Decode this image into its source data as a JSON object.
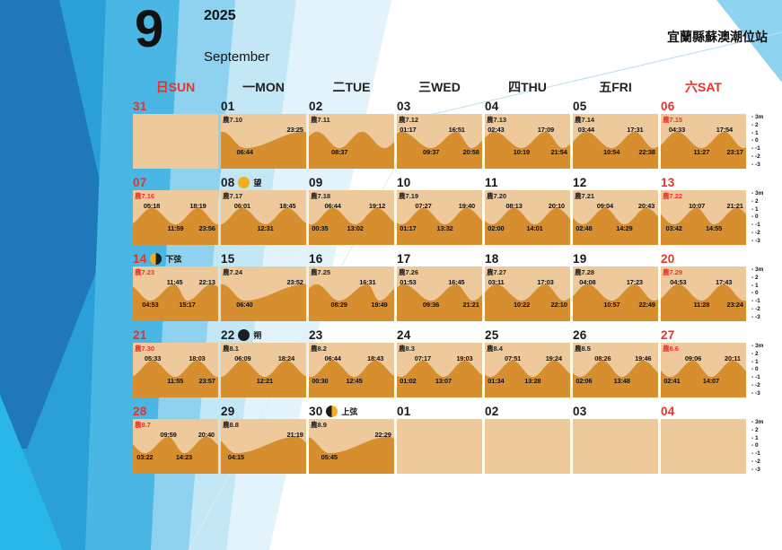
{
  "header": {
    "month_number": "9",
    "year": "2025",
    "month_name": "September",
    "station": "宜蘭縣蘇澳潮位站"
  },
  "weekdays": [
    {
      "key": "sun",
      "label": "日SUN",
      "red": true
    },
    {
      "key": "mon",
      "label": "一MON",
      "red": false
    },
    {
      "key": "tue",
      "label": "二TUE",
      "red": false
    },
    {
      "key": "wed",
      "label": "三WED",
      "red": false
    },
    {
      "key": "thu",
      "label": "四THU",
      "red": false
    },
    {
      "key": "fri",
      "label": "五FRI",
      "red": false
    },
    {
      "key": "sat",
      "label": "六SAT",
      "red": true
    }
  ],
  "axis": {
    "labels": [
      "3m",
      "2",
      "1",
      "0",
      "-1",
      "-2",
      "-3"
    ]
  },
  "colors": {
    "sand": "#edc99c",
    "tide": "#d78e2e",
    "red": "#e8332a",
    "moon_yellow": "#f2ae1c",
    "moon_dark": "#1d1d1d"
  },
  "weeks": [
    [
      {
        "day": "31",
        "red": true,
        "empty": true
      },
      {
        "day": "01",
        "lunar": "農7.10",
        "highs": [
          "23:25"
        ],
        "lows": [
          "06:44"
        ]
      },
      {
        "day": "02",
        "lunar": "農7.11",
        "highs": [],
        "lows": [
          "08:37"
        ]
      },
      {
        "day": "03",
        "lunar": "農7.12",
        "highs": [
          "01:17",
          "16:51"
        ],
        "lows": [
          "09:37",
          "20:58"
        ]
      },
      {
        "day": "04",
        "lunar": "農7.13",
        "highs": [
          "02:43",
          "17:09"
        ],
        "lows": [
          "10:19",
          "21:54"
        ]
      },
      {
        "day": "05",
        "lunar": "農7.14",
        "highs": [
          "03:44",
          "17:31"
        ],
        "lows": [
          "10:54",
          "22:38"
        ]
      },
      {
        "day": "06",
        "red": true,
        "lunar": "農7.15",
        "lunar_red": true,
        "highs": [
          "04:33",
          "17:54"
        ],
        "lows": [
          "11:27",
          "23:17"
        ]
      }
    ],
    [
      {
        "day": "07",
        "red": true,
        "lunar": "農7.16",
        "lunar_red": true,
        "highs": [
          "05:18",
          "18:19"
        ],
        "lows": [
          "11:59",
          "23:56"
        ]
      },
      {
        "day": "08",
        "moon": {
          "type": "full",
          "label": "望"
        },
        "lunar": "農7.17",
        "highs": [
          "06:01",
          "18:45"
        ],
        "lows": [
          "12:31"
        ]
      },
      {
        "day": "09",
        "lunar": "農7.18",
        "highs": [
          "06:44",
          "19:12"
        ],
        "lows": [
          "00:35",
          "13:02"
        ]
      },
      {
        "day": "10",
        "lunar": "農7.19",
        "highs": [
          "07:27",
          "19:40"
        ],
        "lows": [
          "01:17",
          "13:32"
        ]
      },
      {
        "day": "11",
        "lunar": "農7.20",
        "highs": [
          "08:13",
          "20:10"
        ],
        "lows": [
          "02:00",
          "14:01"
        ]
      },
      {
        "day": "12",
        "lunar": "農7.21",
        "highs": [
          "09:04",
          "20:43"
        ],
        "lows": [
          "02:48",
          "14:29"
        ]
      },
      {
        "day": "13",
        "red": true,
        "lunar": "農7.22",
        "lunar_red": true,
        "highs": [
          "10:07",
          "21:21"
        ],
        "lows": [
          "03:42",
          "14:55"
        ]
      }
    ],
    [
      {
        "day": "14",
        "red": true,
        "moon": {
          "type": "last-quarter",
          "label": "下弦"
        },
        "lunar": "農7.23",
        "lunar_red": true,
        "highs": [
          "11:45",
          "22:13"
        ],
        "lows": [
          "04:53",
          "15:17"
        ]
      },
      {
        "day": "15",
        "lunar": "農7.24",
        "highs": [
          "23:52"
        ],
        "lows": [
          "06:40"
        ]
      },
      {
        "day": "16",
        "lunar": "農7.25",
        "highs": [
          "16:31"
        ],
        "lows": [
          "08:29",
          "19:49"
        ]
      },
      {
        "day": "17",
        "lunar": "農7.26",
        "highs": [
          "01:53",
          "16:45"
        ],
        "lows": [
          "09:36",
          "21:21"
        ]
      },
      {
        "day": "18",
        "lunar": "農7.27",
        "highs": [
          "03:11",
          "17:03"
        ],
        "lows": [
          "10:22",
          "22:10"
        ]
      },
      {
        "day": "19",
        "lunar": "農7.28",
        "highs": [
          "04:08",
          "17:23"
        ],
        "lows": [
          "10:57",
          "22:49"
        ]
      },
      {
        "day": "20",
        "red": true,
        "lunar": "農7.29",
        "lunar_red": true,
        "highs": [
          "04:53",
          "17:43"
        ],
        "lows": [
          "11:28",
          "23:24"
        ]
      }
    ],
    [
      {
        "day": "21",
        "red": true,
        "lunar": "農7.30",
        "lunar_red": true,
        "highs": [
          "05:33",
          "18:03"
        ],
        "lows": [
          "11:55",
          "23:57"
        ]
      },
      {
        "day": "22",
        "moon": {
          "type": "new",
          "label": "朔"
        },
        "lunar": "農8.1",
        "highs": [
          "06:09",
          "18:24"
        ],
        "lows": [
          "12:21"
        ]
      },
      {
        "day": "23",
        "lunar": "農8.2",
        "highs": [
          "06:44",
          "18:43"
        ],
        "lows": [
          "00:30",
          "12:45"
        ]
      },
      {
        "day": "24",
        "lunar": "農8.3",
        "highs": [
          "07:17",
          "19:03"
        ],
        "lows": [
          "01:02",
          "13:07"
        ]
      },
      {
        "day": "25",
        "lunar": "農8.4",
        "highs": [
          "07:51",
          "19:24"
        ],
        "lows": [
          "01:34",
          "13:28"
        ]
      },
      {
        "day": "26",
        "lunar": "農8.5",
        "highs": [
          "08:26",
          "19:46"
        ],
        "lows": [
          "02:06",
          "13:48"
        ]
      },
      {
        "day": "27",
        "red": true,
        "lunar": "農8.6",
        "lunar_red": true,
        "highs": [
          "09:06",
          "20:11"
        ],
        "lows": [
          "02:41",
          "14:07"
        ]
      }
    ],
    [
      {
        "day": "28",
        "red": true,
        "lunar": "農8.7",
        "lunar_red": true,
        "highs": [
          "09:59",
          "20:40"
        ],
        "lows": [
          "03:22",
          "14:23"
        ]
      },
      {
        "day": "29",
        "lunar": "農8.8",
        "highs": [
          "21:19"
        ],
        "lows": [
          "04:15"
        ]
      },
      {
        "day": "30",
        "moon": {
          "type": "first-quarter",
          "label": "上弦"
        },
        "lunar": "農8.9",
        "highs": [
          "22:29"
        ],
        "lows": [
          "05:45"
        ]
      },
      {
        "day": "01",
        "empty": true
      },
      {
        "day": "02",
        "empty": true
      },
      {
        "day": "03",
        "empty": true
      },
      {
        "day": "04",
        "red": true,
        "empty": true
      }
    ]
  ]
}
